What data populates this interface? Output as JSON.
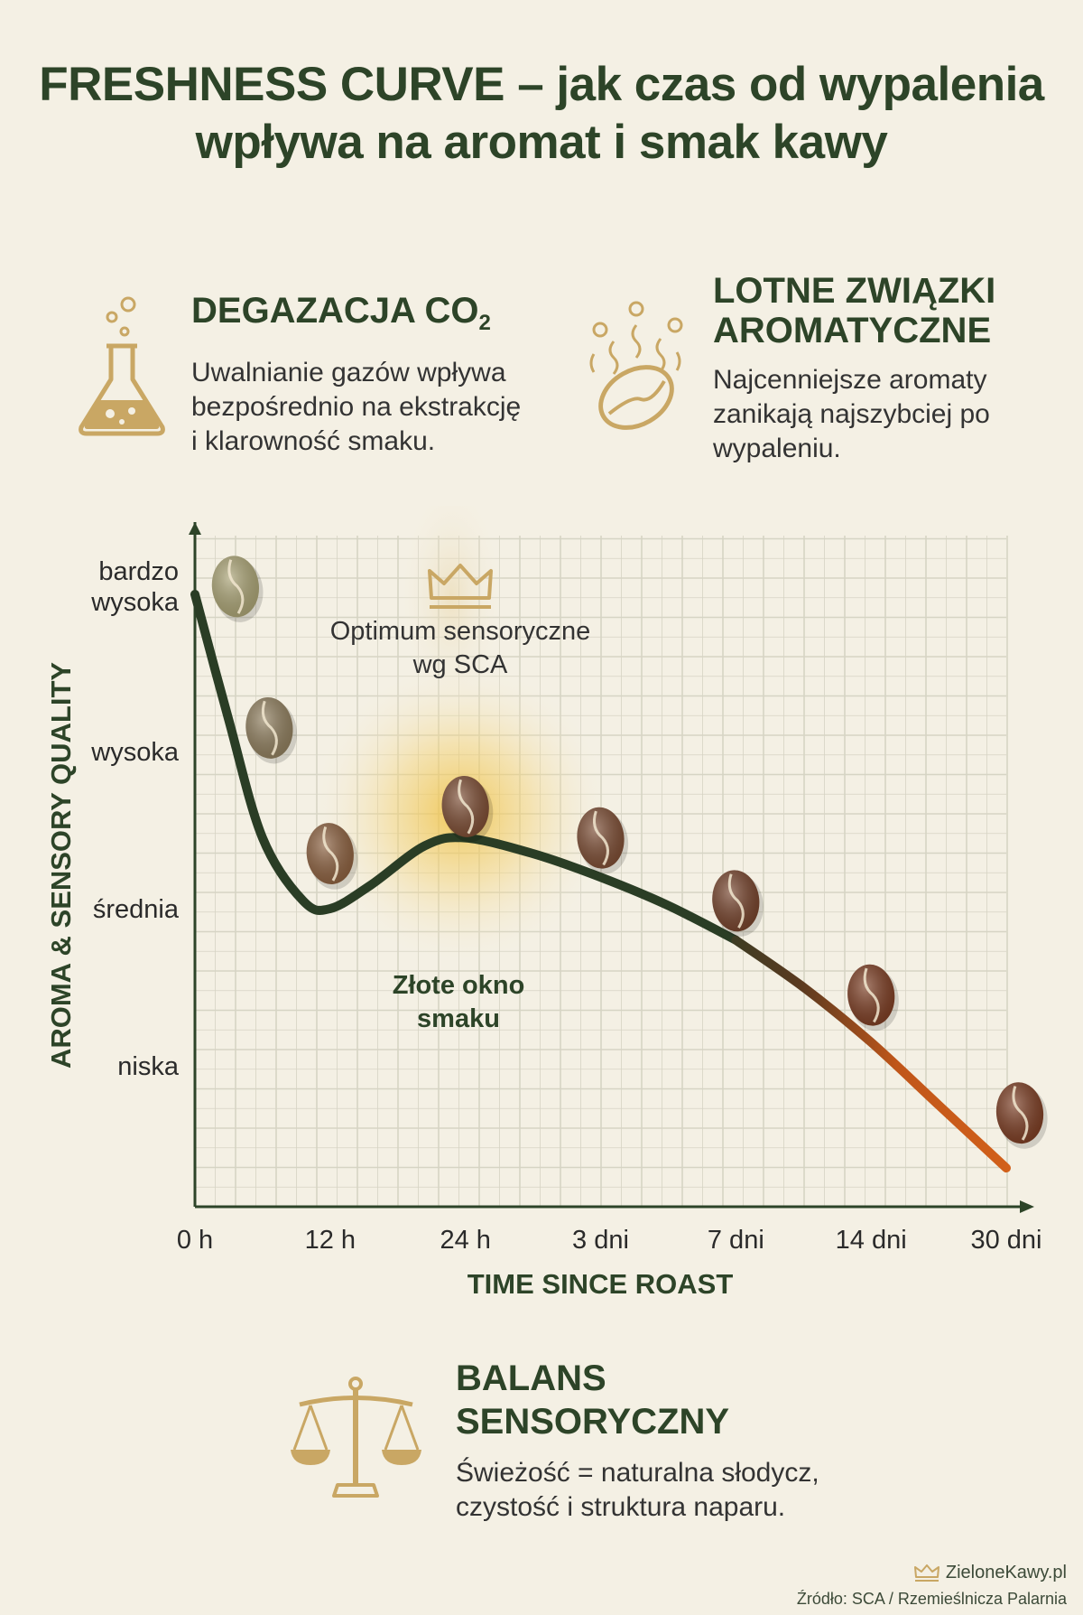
{
  "title": {
    "line1": "FRESHNESS CURVE – jak czas od wypalenia",
    "line2": "wpływa na aromat i smak kawy"
  },
  "degazacja": {
    "heading": "DEGAZACJA CO",
    "heading_sub": "2",
    "line1": "Uwalnianie gazów wpływa",
    "line2": "bezpośrednio na ekstrakcję",
    "line3": "i klarowność smaku.",
    "icon": "flask-icon"
  },
  "lotne": {
    "heading1": "LOTNE ZWIĄZKI",
    "heading2": "AROMATYCZNE",
    "line1": "Najcenniejsze aromaty",
    "line2": "zanikają najszybciej po",
    "line3": "wypaleniu.",
    "icon": "coffee-bean-aroma-icon"
  },
  "balans": {
    "heading1": "BALANS",
    "heading2": "SENSORYCZNY",
    "line1": "Świeżość = naturalna słodycz,",
    "line2": "czystość i struktura naparu.",
    "icon": "scales-icon"
  },
  "footer": {
    "logo": "ZieloneKawy.pl",
    "source": "Źródło: SCA / Rzemieślnicza Palarnia"
  },
  "colors": {
    "title": "#2d4428",
    "curve": "#2a3d25",
    "curve_late": "#d2601a",
    "gold": "#c9a764",
    "background": "#f4f0e4",
    "grid": "#d4d3c4"
  },
  "chart_data": {
    "type": "line",
    "title": "FRESHNESS CURVE",
    "xlabel": "TIME SINCE ROAST",
    "ylabel": "AROMA & SENSORY QUALITY",
    "x_tick_labels": [
      "0 h",
      "12 h",
      "24 h",
      "3 dni",
      "7 dni",
      "14 dni",
      "30 dni"
    ],
    "y_tick_labels": [
      {
        "level": 4,
        "lines": [
          "bardzo",
          "wysoka"
        ]
      },
      {
        "level": 3,
        "lines": [
          "wysoka"
        ]
      },
      {
        "level": 2,
        "lines": [
          "średnia"
        ]
      },
      {
        "level": 1,
        "lines": [
          "niska"
        ]
      }
    ],
    "ylim": [
      0.1,
      4.6
    ],
    "series": [
      {
        "name": "Aroma & sensory quality",
        "x": [
          0,
          0.25,
          0.5,
          0.8,
          1.0,
          1.3,
          1.7,
          2.0,
          2.5,
          3.0,
          3.5,
          4.0,
          4.5,
          5.0,
          5.5,
          6.0
        ],
        "values": [
          4.0,
          3.2,
          2.45,
          2.05,
          2.0,
          2.15,
          2.4,
          2.45,
          2.35,
          2.2,
          2.02,
          1.8,
          1.5,
          1.15,
          0.75,
          0.35
        ]
      }
    ],
    "beans": [
      {
        "x": 0.3,
        "level": 4.05,
        "roast": "green"
      },
      {
        "x": 0.55,
        "level": 3.15,
        "roast": "light"
      },
      {
        "x": 1.0,
        "level": 2.35,
        "roast": "light-medium"
      },
      {
        "x": 2.0,
        "level": 2.65,
        "roast": "medium"
      },
      {
        "x": 3.0,
        "level": 2.45,
        "roast": "medium"
      },
      {
        "x": 4.0,
        "level": 2.05,
        "roast": "medium-dark"
      },
      {
        "x": 5.0,
        "level": 1.45,
        "roast": "dark"
      },
      {
        "x": 6.1,
        "level": 0.7,
        "roast": "dark"
      }
    ],
    "annotations": {
      "optimum_line1": "Optimum sensoryczne",
      "optimum_line2": "wg SCA",
      "golden_line1": "Złote okno",
      "golden_line2": "smaku"
    }
  }
}
